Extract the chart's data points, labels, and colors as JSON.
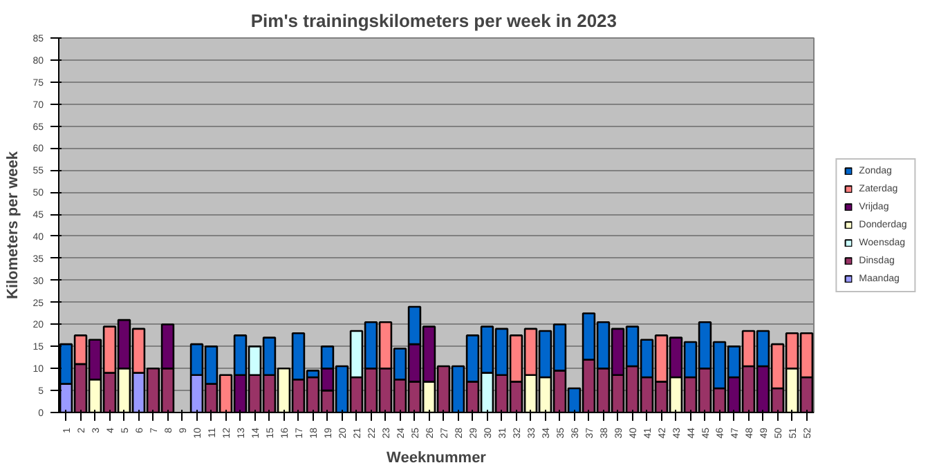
{
  "chart_data": {
    "type": "bar",
    "stacked": true,
    "title": "Pim's  trainingskilometers per week in 2023",
    "xlabel": "Weeknummer",
    "ylabel": "Kilometers per week",
    "categories": [
      "1",
      "2",
      "3",
      "4",
      "5",
      "6",
      "7",
      "8",
      "9",
      "10",
      "11",
      "12",
      "13",
      "14",
      "15",
      "16",
      "17",
      "18",
      "19",
      "20",
      "21",
      "22",
      "23",
      "24",
      "25",
      "26",
      "27",
      "28",
      "29",
      "30",
      "31",
      "32",
      "33",
      "34",
      "35",
      "36",
      "37",
      "38",
      "39",
      "40",
      "41",
      "42",
      "43",
      "44",
      "45",
      "46",
      "47",
      "48",
      "49",
      "50",
      "51",
      "52"
    ],
    "ylim": [
      0,
      85
    ],
    "yticks": [
      0,
      5,
      10,
      15,
      20,
      25,
      30,
      35,
      40,
      45,
      50,
      55,
      60,
      65,
      70,
      75,
      80,
      85
    ],
    "grid": "y",
    "legend": "right",
    "series": [
      {
        "name": "Maandag",
        "color": "#9999ff",
        "values": [
          6.5,
          null,
          null,
          null,
          null,
          9,
          null,
          null,
          null,
          8.5,
          null,
          null,
          null,
          null,
          null,
          null,
          null,
          null,
          null,
          null,
          null,
          null,
          null,
          null,
          null,
          null,
          null,
          null,
          null,
          null,
          null,
          null,
          null,
          null,
          null,
          null,
          null,
          null,
          null,
          null,
          null,
          null,
          null,
          null,
          null,
          null,
          null,
          null,
          null,
          null,
          null,
          null
        ]
      },
      {
        "name": "Dinsdag",
        "color": "#993366",
        "values": [
          null,
          11,
          null,
          9,
          null,
          null,
          10,
          10,
          null,
          null,
          6.5,
          null,
          null,
          8.5,
          8.5,
          null,
          7.5,
          8,
          5,
          null,
          8,
          10,
          10,
          7.5,
          7,
          null,
          10.5,
          null,
          7,
          null,
          8.5,
          7,
          null,
          null,
          9.5,
          null,
          12,
          10,
          8.5,
          10.5,
          8,
          7,
          null,
          8,
          10,
          5.5,
          null,
          10.5,
          null,
          5.5,
          null,
          8
        ]
      },
      {
        "name": "Woensdag",
        "color": "#ccffff",
        "values": [
          null,
          null,
          null,
          null,
          null,
          null,
          null,
          null,
          null,
          null,
          null,
          null,
          null,
          6.5,
          null,
          null,
          null,
          null,
          null,
          null,
          10.5,
          null,
          null,
          null,
          null,
          null,
          null,
          null,
          null,
          9,
          null,
          null,
          null,
          null,
          null,
          null,
          null,
          null,
          null,
          null,
          null,
          null,
          null,
          null,
          null,
          null,
          null,
          null,
          null,
          null,
          null,
          null
        ]
      },
      {
        "name": "Donderdag",
        "color": "#ffffcc",
        "values": [
          null,
          null,
          7.5,
          null,
          10,
          null,
          null,
          null,
          null,
          null,
          null,
          null,
          null,
          null,
          null,
          10,
          null,
          null,
          null,
          null,
          null,
          null,
          null,
          null,
          null,
          7,
          null,
          null,
          null,
          null,
          null,
          null,
          8.5,
          8,
          null,
          null,
          null,
          null,
          null,
          null,
          null,
          null,
          8,
          null,
          null,
          null,
          null,
          null,
          null,
          null,
          10,
          null
        ]
      },
      {
        "name": "Vrijdag",
        "color": "#660066",
        "values": [
          null,
          null,
          9,
          null,
          11,
          null,
          null,
          10,
          null,
          null,
          null,
          null,
          8.5,
          null,
          null,
          null,
          null,
          null,
          5,
          null,
          null,
          null,
          null,
          null,
          8.5,
          12.5,
          null,
          null,
          null,
          null,
          null,
          null,
          null,
          null,
          null,
          null,
          null,
          null,
          10.5,
          null,
          null,
          null,
          9,
          null,
          null,
          null,
          8,
          null,
          10.5,
          null,
          null,
          null
        ]
      },
      {
        "name": "Zaterdag",
        "color": "#ff8080",
        "values": [
          null,
          6.5,
          null,
          10.5,
          null,
          10,
          null,
          null,
          null,
          null,
          null,
          8.5,
          null,
          null,
          null,
          null,
          null,
          null,
          null,
          null,
          null,
          null,
          10.5,
          null,
          null,
          null,
          null,
          null,
          null,
          null,
          null,
          10.5,
          10.5,
          null,
          null,
          null,
          null,
          null,
          null,
          null,
          null,
          10.5,
          null,
          null,
          null,
          null,
          null,
          8,
          null,
          10,
          8,
          10
        ]
      },
      {
        "name": "Zondag",
        "color": "#0066cc",
        "values": [
          9,
          null,
          null,
          null,
          null,
          null,
          null,
          null,
          null,
          7,
          8.5,
          null,
          9,
          null,
          8.5,
          null,
          10.5,
          1.5,
          5,
          10.5,
          null,
          10.5,
          null,
          7,
          8.5,
          null,
          null,
          10.5,
          10.5,
          10.5,
          10.5,
          null,
          null,
          10.5,
          10.5,
          5.5,
          10.5,
          10.5,
          null,
          9,
          8.5,
          null,
          null,
          8,
          10.5,
          10.5,
          7,
          null,
          8,
          null,
          null,
          null
        ]
      }
    ]
  }
}
